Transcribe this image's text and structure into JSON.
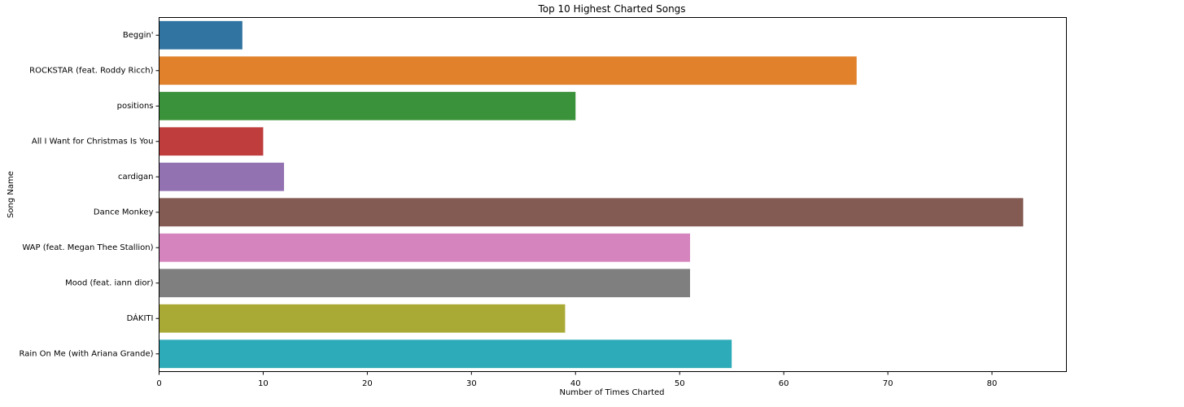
{
  "chart_data": {
    "type": "bar",
    "orientation": "horizontal",
    "title": "Top 10 Highest Charted Songs",
    "xlabel": "Number of Times Charted",
    "ylabel": "Song Name",
    "categories": [
      "Beggin'",
      "ROCKSTAR (feat. Roddy Ricch)",
      "positions",
      "All I Want for Christmas Is You",
      "cardigan",
      "Dance Monkey",
      "WAP (feat. Megan Thee Stallion)",
      "Mood (feat. iann dior)",
      "DÁKITI",
      "Rain On Me (with Ariana Grande)"
    ],
    "values": [
      8,
      67,
      40,
      10,
      12,
      83,
      51,
      51,
      39,
      55
    ],
    "colors": [
      "#3274a1",
      "#e1812c",
      "#3a923a",
      "#c03d3e",
      "#9372b2",
      "#845b53",
      "#d684bd",
      "#7f7f7f",
      "#a9aa35",
      "#2eabb8"
    ],
    "xlim": [
      0,
      87.15
    ],
    "xticks": [
      0,
      10,
      20,
      30,
      40,
      50,
      60,
      70,
      80
    ],
    "grid": false,
    "legend": "none"
  }
}
